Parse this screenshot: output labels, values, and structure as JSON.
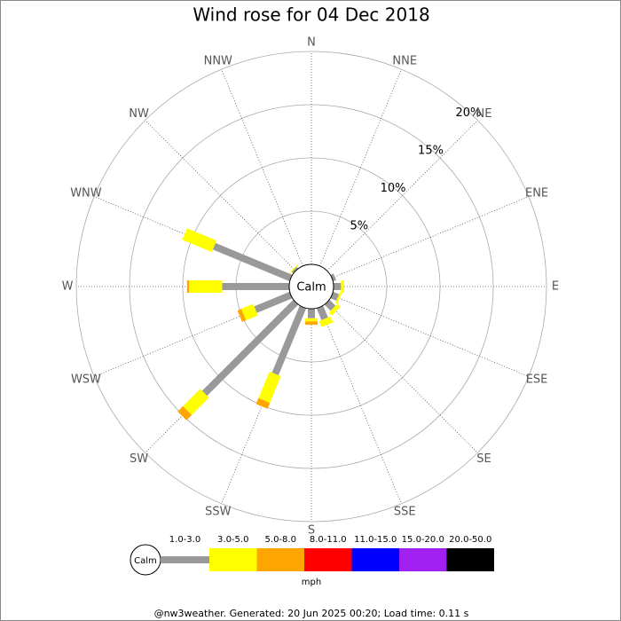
{
  "chart_data": {
    "type": "windrose",
    "title": "Wind rose for 04 Dec 2018",
    "categories": [
      "N",
      "NNE",
      "NE",
      "ENE",
      "E",
      "ESE",
      "SE",
      "SSE",
      "S",
      "SSW",
      "SW",
      "WSW",
      "W",
      "WNW",
      "NW",
      "NNW"
    ],
    "calm_label": "Calm",
    "ylim": [
      0,
      20
    ],
    "yticks": [
      {
        "value": 5,
        "label": "5%"
      },
      {
        "value": 10,
        "label": "10%"
      },
      {
        "value": 15,
        "label": "15%"
      },
      {
        "value": 20,
        "label": "20%"
      }
    ],
    "series": [
      {
        "name": "1.0-3.0",
        "color": "#999999",
        "values": [
          0,
          0,
          0,
          0.3,
          0.7,
          0.6,
          0.8,
          1.2,
          0.9,
          6.8,
          12.1,
          3.6,
          6.3,
          7.8,
          0.2,
          0
        ]
      },
      {
        "name": "3.0-5.0",
        "color": "#ffff00",
        "values": [
          0,
          0,
          0,
          0,
          0.3,
          0.2,
          0.4,
          0.6,
          0.3,
          2.7,
          2.3,
          1.2,
          3.1,
          3.0,
          0.1,
          0
        ]
      },
      {
        "name": "5.0-8.0",
        "color": "#ffa500",
        "values": [
          0,
          0,
          0,
          0,
          0,
          0,
          0,
          0,
          0.3,
          0.6,
          0.7,
          0.4,
          0.2,
          0,
          0,
          0
        ]
      },
      {
        "name": "8.0-11.0",
        "color": "#ff0000",
        "values": [
          0,
          0,
          0,
          0,
          0,
          0,
          0,
          0,
          0,
          0,
          0,
          0,
          0,
          0,
          0,
          0
        ]
      },
      {
        "name": "11.0-15.0",
        "color": "#0000ff",
        "values": [
          0,
          0,
          0,
          0,
          0,
          0,
          0,
          0,
          0,
          0,
          0,
          0,
          0,
          0,
          0,
          0
        ]
      },
      {
        "name": "15.0-20.0",
        "color": "#a020f0",
        "values": [
          0,
          0,
          0,
          0,
          0,
          0,
          0,
          0,
          0,
          0,
          0,
          0,
          0,
          0,
          0,
          0
        ]
      },
      {
        "name": "20.0-50.0",
        "color": "#000000",
        "values": [
          0,
          0,
          0,
          0,
          0,
          0,
          0,
          0,
          0,
          0,
          0,
          0,
          0,
          0,
          0,
          0
        ]
      }
    ],
    "unit_label": "mph",
    "footer": "@nw3weather. Generated: 20 Jun 2025 00:20; Load time: 0.11 s"
  }
}
